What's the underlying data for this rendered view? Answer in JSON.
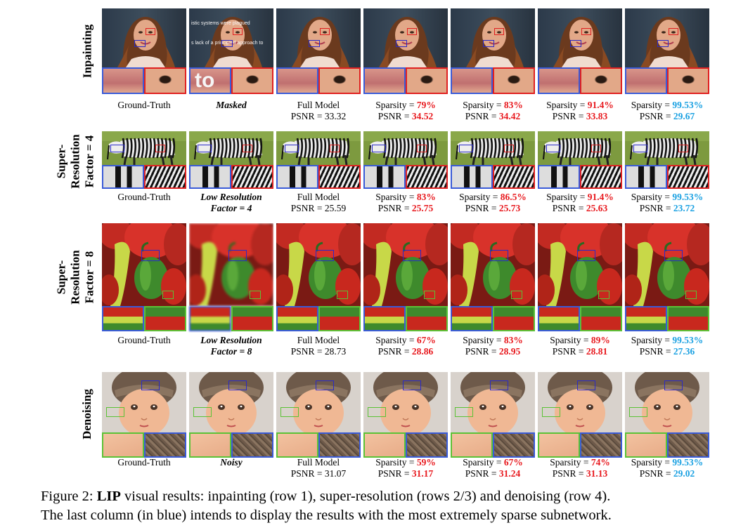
{
  "rows": [
    {
      "label": [
        "Inpainting"
      ]
    },
    {
      "label": [
        "Super-",
        "Resolution",
        "Factor = 4"
      ]
    },
    {
      "label": [
        "Super-",
        "Resolution",
        "Factor = 8"
      ]
    },
    {
      "label": [
        "Denoising"
      ]
    }
  ],
  "captions": [
    [
      {
        "l1": "Ground-Truth",
        "l2": ""
      },
      {
        "l1": "Masked",
        "l2": "",
        "italic": true
      },
      {
        "l1": "Full Model",
        "l2": "PSNR = 33.32"
      },
      {
        "l1_pre": "Sparsity = ",
        "l1_val": "79%",
        "l2_pre": "PSNR = ",
        "l2_val": "34.52",
        "color": "red"
      },
      {
        "l1_pre": "Sparsity = ",
        "l1_val": "83%",
        "l2_pre": "PSNR = ",
        "l2_val": "34.42",
        "color": "red"
      },
      {
        "l1_pre": "Sparsity = ",
        "l1_val": "91.4%",
        "l2_pre": "PSNR = ",
        "l2_val": "33.83",
        "color": "red"
      },
      {
        "l1_pre": "Sparsity = ",
        "l1_val": "99.53%",
        "l2_pre": "PSNR = ",
        "l2_val": "29.67",
        "color": "blue"
      }
    ],
    [
      {
        "l1": "Ground-Truth",
        "l2": ""
      },
      {
        "l1": "Low Resolution",
        "l2": "Factor = 4",
        "italic": true
      },
      {
        "l1": "Full Model",
        "l2": "PSNR = 25.59"
      },
      {
        "l1_pre": "Sparsity = ",
        "l1_val": "83%",
        "l2_pre": "PSNR = ",
        "l2_val": "25.75",
        "color": "red"
      },
      {
        "l1_pre": "Sparsity = ",
        "l1_val": "86.5%",
        "l2_pre": "PSNR = ",
        "l2_val": "25.73",
        "color": "red"
      },
      {
        "l1_pre": "Sparsity = ",
        "l1_val": "91.4%",
        "l2_pre": "PSNR = ",
        "l2_val": "25.63",
        "color": "red"
      },
      {
        "l1_pre": "Sparsity = ",
        "l1_val": "99.53%",
        "l2_pre": "PSNR = ",
        "l2_val": "23.72",
        "color": "blue"
      }
    ],
    [
      {
        "l1": "Ground-Truth",
        "l2": ""
      },
      {
        "l1": "Low Resolution",
        "l2": "Factor = 8",
        "italic": true
      },
      {
        "l1": "Full Model",
        "l2": "PSNR = 28.73"
      },
      {
        "l1_pre": "Sparsity = ",
        "l1_val": "67%",
        "l2_pre": "PSNR = ",
        "l2_val": "28.86",
        "color": "red"
      },
      {
        "l1_pre": "Sparsity = ",
        "l1_val": "83%",
        "l2_pre": "PSNR = ",
        "l2_val": "28.95",
        "color": "red"
      },
      {
        "l1_pre": "Sparsity = ",
        "l1_val": "89%",
        "l2_pre": "PSNR = ",
        "l2_val": "28.81",
        "color": "red"
      },
      {
        "l1_pre": "Sparsity = ",
        "l1_val": "99.53%",
        "l2_pre": "PSNR = ",
        "l2_val": "27.36",
        "color": "blue"
      }
    ],
    [
      {
        "l1": "Ground-Truth",
        "l2": ""
      },
      {
        "l1": "Noisy",
        "l2": "",
        "italic": true
      },
      {
        "l1": "Full Model",
        "l2": "PSNR = 31.07"
      },
      {
        "l1_pre": "Sparsity = ",
        "l1_val": "59%",
        "l2_pre": "PSNR = ",
        "l2_val": "31.17",
        "color": "red"
      },
      {
        "l1_pre": "Sparsity = ",
        "l1_val": "67%",
        "l2_pre": "PSNR = ",
        "l2_val": "31.24",
        "color": "red"
      },
      {
        "l1_pre": "Sparsity = ",
        "l1_val": "74%",
        "l2_pre": "PSNR = ",
        "l2_val": "31.13",
        "color": "red"
      },
      {
        "l1_pre": "Sparsity = ",
        "l1_val": "99.53%",
        "l2_pre": "PSNR = ",
        "l2_val": "29.02",
        "color": "blue"
      }
    ]
  ],
  "inpainting_overlay": [
    "istic systems were plagued",
    "s lack of a principled approach to",
    "to"
  ],
  "figure_caption": {
    "line1_prefix": "Figure 2: ",
    "line1_bold": "LIP",
    "line1_rest": " visual results: inpainting (row 1), super-resolution (rows 2/3) and denoising (row 4).",
    "line2": "The last column (in blue) intends to display the results with the most extremely sparse subnetwork."
  },
  "colors": {
    "red_value": "#e8191e",
    "blue_value": "#1ba1e2",
    "zoom_box_blue": "#3a5bd8",
    "zoom_box_red": "#e02020",
    "zoom_box_green": "#5bc236",
    "zoom_box_purple": "#2a2ac8"
  }
}
